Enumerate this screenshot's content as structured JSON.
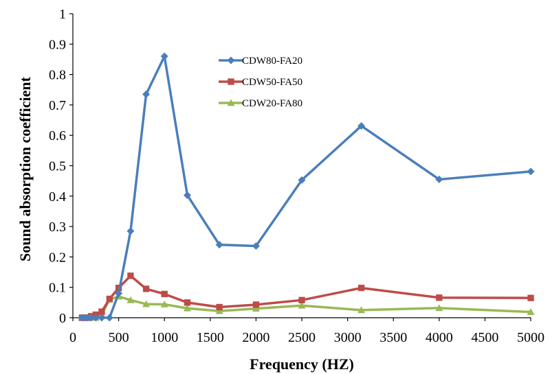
{
  "chart_data": {
    "type": "line",
    "title": "",
    "xlabel": "Frequency (HZ)",
    "ylabel": "Sound absorption coefficient",
    "xlim": [
      0,
      5000
    ],
    "ylim": [
      0,
      1
    ],
    "xticks": [
      0,
      500,
      1000,
      1500,
      2000,
      2500,
      3000,
      3500,
      4000,
      4500,
      5000
    ],
    "yticks": [
      0,
      0.1,
      0.2,
      0.3,
      0.4,
      0.5,
      0.6,
      0.7,
      0.8,
      0.9,
      1
    ],
    "ytick_labels": [
      "0",
      "0.1",
      "0.2",
      "0.3",
      "0.4",
      "0.5",
      "0.6",
      "0.7",
      "0.8",
      "0.9",
      "1"
    ],
    "grid": false,
    "legend_position": "top-center",
    "x": [
      100,
      125,
      160,
      200,
      250,
      315,
      400,
      500,
      630,
      800,
      1000,
      1250,
      1600,
      2000,
      2500,
      3150,
      4000,
      5000
    ],
    "series": [
      {
        "name": "CDW80-FA20",
        "color": "#4a7ebb",
        "marker": "diamond",
        "values": [
          0,
          0,
          0,
          0,
          0,
          0,
          0,
          0.08,
          0.285,
          0.735,
          0.86,
          0.403,
          0.24,
          0.236,
          0.453,
          0.631,
          0.455,
          0.481
        ]
      },
      {
        "name": "CDW50-FA50",
        "color": "#be4b48",
        "marker": "square",
        "values": [
          0,
          0,
          0,
          0.005,
          0.01,
          0.02,
          0.062,
          0.098,
          0.138,
          0.095,
          0.078,
          0.05,
          0.035,
          0.043,
          0.058,
          0.098,
          0.066,
          0.065
        ]
      },
      {
        "name": "CDW20-FA80",
        "color": "#98b954",
        "marker": "triangle",
        "values": [
          0,
          0,
          0,
          0,
          0,
          0.01,
          0.06,
          0.07,
          0.058,
          0.045,
          0.044,
          0.031,
          0.022,
          0.03,
          0.04,
          0.025,
          0.032,
          0.019
        ]
      }
    ]
  }
}
